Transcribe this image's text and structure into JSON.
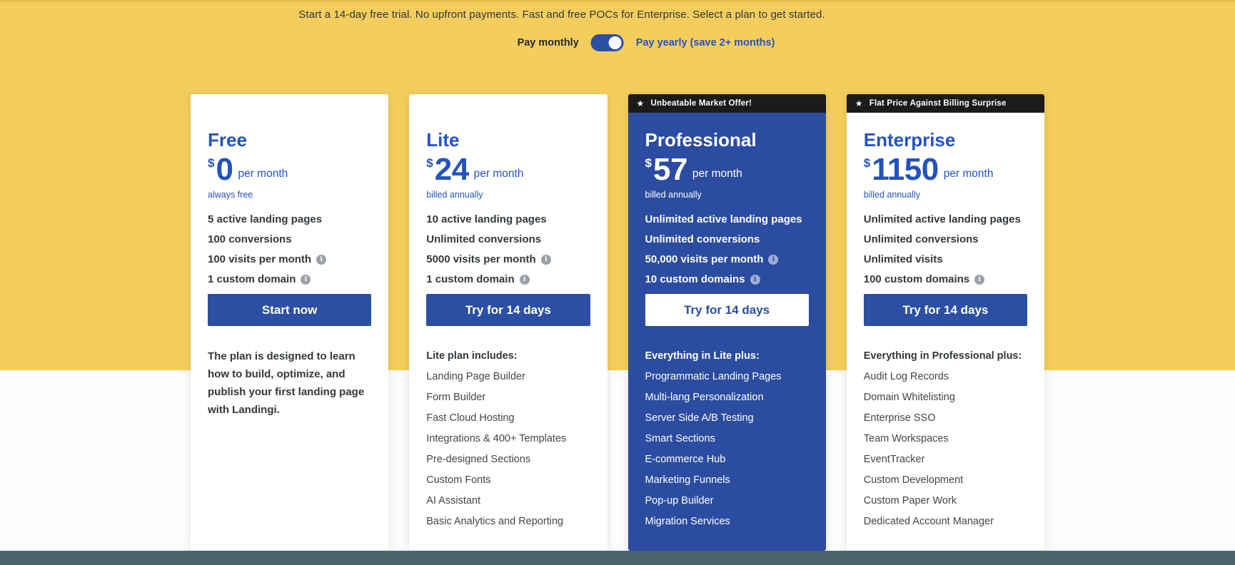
{
  "banner": {
    "text": "Start a 14-day free trial. No upfront payments. Fast and free POCs for Enterprise. Select a plan to get started."
  },
  "billing_toggle": {
    "monthly_label": "Pay monthly",
    "yearly_label": "Pay yearly (save 2+ months)",
    "selected": "yearly"
  },
  "icons": {
    "star": "★",
    "info": "i"
  },
  "colors": {
    "background_yellow": "#F4CE5D",
    "brand_blue_text": "#2353BE",
    "button_blue": "#2C4FA3",
    "highlight_card_blue": "#2B4CA0",
    "badge_black": "#1B1B1B",
    "bottom_bar_slate": "#4C636E"
  },
  "plans": [
    {
      "name": "Free",
      "badge": null,
      "price": {
        "currency": "$",
        "amount": "0",
        "period": "per month",
        "note": "always free"
      },
      "features": [
        {
          "text": "5 active landing pages",
          "info": false
        },
        {
          "text": "100 conversions",
          "info": false
        },
        {
          "text": "100 visits per month",
          "info": true
        },
        {
          "text": "1 custom domain",
          "info": true
        }
      ],
      "cta": "Start now",
      "description": "The plan is designed to learn how to build, optimize, and publish your first landing page with Landingi."
    },
    {
      "name": "Lite",
      "badge": null,
      "price": {
        "currency": "$",
        "amount": "24",
        "period": "per month",
        "note": "billed annually"
      },
      "features": [
        {
          "text": "10 active landing pages",
          "info": false
        },
        {
          "text": "Unlimited conversions",
          "info": false
        },
        {
          "text": "5000 visits per month",
          "info": true
        },
        {
          "text": "1 custom domain",
          "info": true
        }
      ],
      "cta": "Try for 14 days",
      "includes_heading": "Lite plan includes:",
      "includes": [
        "Landing Page Builder",
        "Form Builder",
        "Fast Cloud Hosting",
        "Integrations & 400+ Templates",
        "Pre-designed Sections",
        "Custom Fonts",
        "AI Assistant",
        "Basic Analytics and Reporting"
      ]
    },
    {
      "name": "Professional",
      "badge": "Unbeatable Market Offer!",
      "highlighted": true,
      "price": {
        "currency": "$",
        "amount": "57",
        "period": "per month",
        "note": "billed annually"
      },
      "features": [
        {
          "text": "Unlimited active landing pages",
          "info": false
        },
        {
          "text": "Unlimited conversions",
          "info": false
        },
        {
          "text": "50,000 visits per month",
          "info": true
        },
        {
          "text": "10 custom domains",
          "info": true
        }
      ],
      "cta": "Try for 14 days",
      "includes_heading": "Everything in Lite plus:",
      "includes": [
        "Programmatic Landing Pages",
        "Multi-lang Personalization",
        "Server Side A/B Testing",
        "Smart Sections",
        "E-commerce Hub",
        "Marketing Funnels",
        "Pop-up Builder",
        "Migration Services"
      ]
    },
    {
      "name": "Enterprise",
      "badge": "Flat Price Against Billing Surprise",
      "price": {
        "currency": "$",
        "amount": "1150",
        "period": "per month",
        "note": "billed annually"
      },
      "features": [
        {
          "text": "Unlimited active landing pages",
          "info": false
        },
        {
          "text": "Unlimited conversions",
          "info": false
        },
        {
          "text": "Unlimited visits",
          "info": false
        },
        {
          "text": "100 custom domains",
          "info": true
        }
      ],
      "cta": "Try for 14 days",
      "includes_heading": "Everything in Professional plus:",
      "includes": [
        "Audit Log Records",
        "Domain Whitelisting",
        "Enterprise SSO",
        "Team Workspaces",
        "EventTracker",
        "Custom Development",
        "Custom Paper Work",
        "Dedicated Account Manager"
      ]
    }
  ]
}
